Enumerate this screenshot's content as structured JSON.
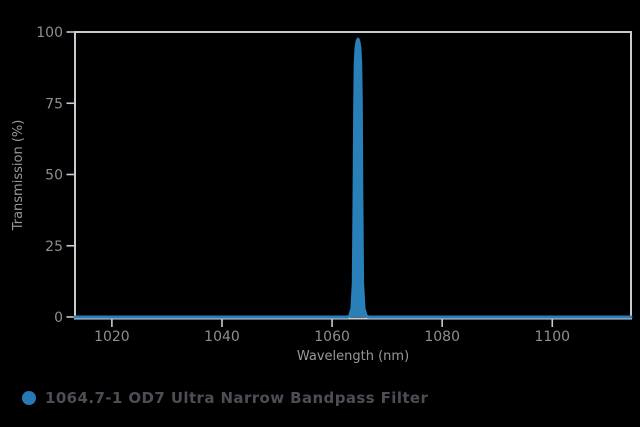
{
  "colors": {
    "background": "#000000",
    "plot_border": "#c8cbd2",
    "tick_label": "#8e8e92",
    "axis_label": "#98989c",
    "series_blue": "#2980b9",
    "legend_dot": "#2878b5",
    "legend_text": "#4d4d55"
  },
  "chart_data": {
    "type": "line",
    "title": "",
    "xlabel": "Wavelength (nm)",
    "ylabel": "Transmission (%)",
    "xlim": [
      1013.3,
      1114.3
    ],
    "ylim": [
      0,
      100
    ],
    "x_ticks": [
      1020,
      1040,
      1060,
      1080,
      1100
    ],
    "y_ticks": [
      0,
      25,
      50,
      75,
      100
    ],
    "grid": false,
    "legend_position": "bottom-left",
    "series": [
      {
        "name": "1064.7-1 OD7 Ultra Narrow Bandpass Filter",
        "color": "#2980b9",
        "peak_wavelength_nm": 1064.7,
        "peak_transmission_pct": 97.5,
        "points": [
          [
            1013.3,
            0
          ],
          [
            1062.8,
            0
          ],
          [
            1063.2,
            0.4
          ],
          [
            1063.6,
            3
          ],
          [
            1063.85,
            12
          ],
          [
            1064.0,
            45
          ],
          [
            1064.1,
            75
          ],
          [
            1064.2,
            89
          ],
          [
            1064.35,
            94.5
          ],
          [
            1064.55,
            96.8
          ],
          [
            1064.7,
            97.5
          ],
          [
            1064.85,
            96.8
          ],
          [
            1065.05,
            94.5
          ],
          [
            1065.2,
            89
          ],
          [
            1065.3,
            75
          ],
          [
            1065.4,
            45
          ],
          [
            1065.55,
            12
          ],
          [
            1065.8,
            3
          ],
          [
            1066.2,
            0.4
          ],
          [
            1066.6,
            0
          ],
          [
            1114.3,
            0
          ]
        ]
      }
    ]
  },
  "legend": {
    "label": "1064.7-1 OD7 Ultra Narrow Bandpass Filter"
  }
}
